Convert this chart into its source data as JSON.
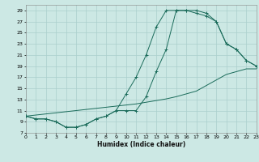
{
  "xlabel": "Humidex (Indice chaleur)",
  "bg_color": "#cce8e4",
  "grid_color": "#aacfcc",
  "line_color": "#1a6b5a",
  "xlim": [
    0,
    23
  ],
  "ylim": [
    7,
    30
  ],
  "xticks": [
    0,
    1,
    2,
    3,
    4,
    5,
    6,
    7,
    8,
    9,
    10,
    11,
    12,
    13,
    14,
    15,
    16,
    17,
    18,
    19,
    20,
    21,
    22,
    23
  ],
  "yticks": [
    7,
    9,
    11,
    13,
    15,
    17,
    19,
    21,
    23,
    25,
    27,
    29
  ],
  "upper_x": [
    0,
    1,
    2,
    3,
    4,
    5,
    6,
    7,
    8,
    9,
    10,
    11,
    12,
    13,
    14,
    15,
    16,
    17,
    18,
    19,
    20,
    21,
    22,
    23
  ],
  "upper_y": [
    10,
    9.5,
    9.5,
    9,
    8,
    8,
    8.5,
    9.5,
    10,
    11,
    14,
    17,
    21,
    26,
    29,
    29,
    29,
    28.5,
    28,
    27,
    23,
    22,
    20,
    19
  ],
  "lower_x": [
    0,
    1,
    2,
    3,
    4,
    5,
    6,
    7,
    8,
    9,
    10,
    11,
    12,
    13,
    14,
    15,
    16,
    17,
    18,
    19,
    20,
    21,
    22,
    23
  ],
  "lower_y": [
    10,
    9.5,
    9.5,
    9,
    8,
    8,
    8.5,
    9.5,
    10,
    11,
    11,
    11,
    13.5,
    18,
    22,
    29,
    29,
    29,
    28.5,
    27,
    23,
    22,
    20,
    19
  ],
  "diag_x": [
    0,
    1,
    2,
    3,
    4,
    5,
    6,
    7,
    8,
    9,
    10,
    11,
    12,
    13,
    14,
    15,
    16,
    17,
    18,
    19,
    20,
    21,
    22,
    23
  ],
  "diag_y": [
    10,
    10.2,
    10.4,
    10.6,
    10.8,
    11.0,
    11.2,
    11.4,
    11.6,
    11.8,
    12.0,
    12.2,
    12.5,
    12.8,
    13.1,
    13.5,
    14.0,
    14.5,
    15.5,
    16.5,
    17.5,
    18.0,
    18.5,
    18.5
  ]
}
